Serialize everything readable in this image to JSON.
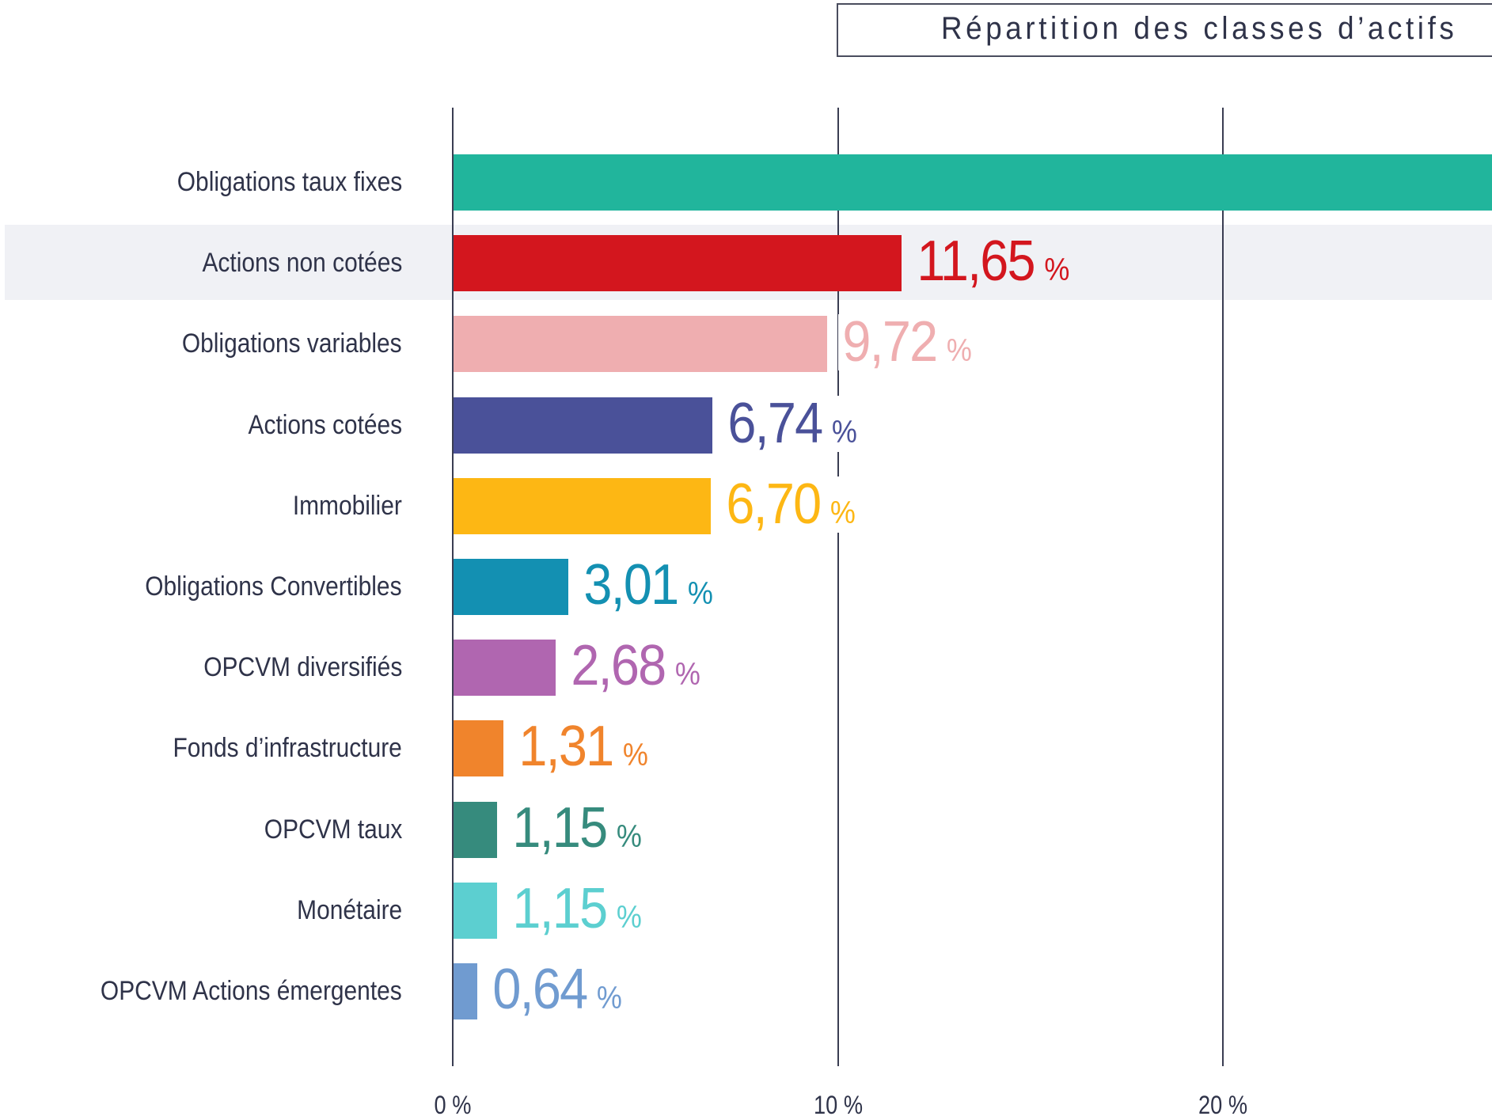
{
  "chart_data": {
    "type": "bar",
    "orientation": "horizontal",
    "title": "Répartition des classes d’actifs",
    "xlabel": "",
    "ylabel": "",
    "xlim": [
      0,
      27.2
    ],
    "x_ticks": [
      0,
      10,
      20
    ],
    "x_tick_labels": [
      "0 %",
      "10 %",
      "20 %"
    ],
    "grid": "vertical lines at ticks",
    "highlighted_category": "Actions non cotées",
    "categories": [
      "Obligations taux fixes",
      "Actions non cotées",
      "Obligations variables",
      "Actions cotées",
      "Immobilier",
      "Obligations Convertibles",
      "OPCVM diversifiés",
      "Fonds d’infrastructure",
      "OPCVM taux",
      "Monétaire",
      "OPCVM Actions émergentes"
    ],
    "values": [
      null,
      11.65,
      9.72,
      6.74,
      6.7,
      3.01,
      2.68,
      1.31,
      1.15,
      1.15,
      0.64
    ],
    "value_labels": [
      "",
      "11,65",
      "9,72",
      "6,74",
      "6,70",
      "3,01",
      "2,68",
      "1,31",
      "1,15",
      "1,15",
      "0,64"
    ],
    "value_unit": "%",
    "notes": "First bar (Obligations taux fixes) extends beyond the visible area; its value label is not visible.",
    "colors": [
      "#21b59c",
      "#d3161e",
      "#efaeb0",
      "#4a5199",
      "#fdb714",
      "#1390b2",
      "#b066b0",
      "#f0842c",
      "#368b7d",
      "#5ccfd0",
      "#709bd0"
    ]
  }
}
